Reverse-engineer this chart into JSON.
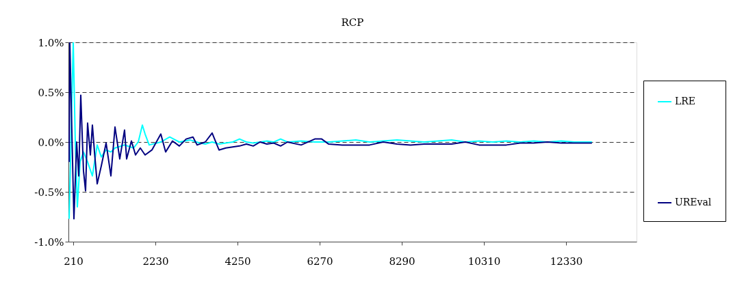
{
  "chart_data": {
    "type": "line",
    "title": "RCP",
    "xlim": [
      92,
      14064
    ],
    "xticks": [
      210,
      2230,
      4250,
      6270,
      8290,
      10310,
      12330
    ],
    "ylim": [
      -1.0,
      1.0
    ],
    "yticks": [
      {
        "value": -1.0,
        "label": "-1.0%"
      },
      {
        "value": -0.5,
        "label": "-0.5%"
      },
      {
        "value": 0.0,
        "label": "0.0%"
      },
      {
        "value": 0.5,
        "label": "0.5%"
      },
      {
        "value": 1.0,
        "label": "1.0%"
      }
    ],
    "grid": "y",
    "legend": "right",
    "line_style": "solid",
    "marker": "none",
    "series": [
      {
        "name": "LRE",
        "color": "#00ffff",
        "x": [
          109,
          210,
          260,
          311,
          378,
          462,
          563,
          681,
          799,
          900,
          1018,
          1136,
          1237,
          1472,
          1691,
          1809,
          1910,
          1977,
          2078,
          2364,
          2583,
          2819,
          3088,
          3324,
          3458,
          3626,
          3795,
          3963,
          4132,
          4300,
          4468,
          4637,
          4805,
          4973,
          5141,
          5310,
          5478,
          5815,
          6151,
          6488,
          6824,
          7161,
          7498,
          7834,
          8171,
          8507,
          8844,
          9180,
          9517,
          9854,
          10190,
          10527,
          10863,
          11200,
          11537,
          11873,
          12210,
          12546,
          12967
        ],
        "values": [
          -0.77,
          1.0,
          0.0,
          -0.65,
          -0.2,
          -0.1,
          -0.2,
          -0.34,
          -0.03,
          -0.15,
          -0.08,
          -0.1,
          -0.06,
          -0.03,
          -0.06,
          0.0,
          0.17,
          0.08,
          -0.03,
          0.0,
          0.05,
          0.0,
          0.02,
          -0.01,
          -0.02,
          0.0,
          -0.02,
          -0.01,
          0.0,
          0.03,
          0.0,
          -0.01,
          0.0,
          0.01,
          0.0,
          0.03,
          0.0,
          0.01,
          0.0,
          0.0,
          0.01,
          0.02,
          0.0,
          0.01,
          0.02,
          0.01,
          0.0,
          0.01,
          0.02,
          0.0,
          0.01,
          0.0,
          0.01,
          0.0,
          0.01,
          0.0,
          0.01,
          0.0,
          0.0
        ]
      },
      {
        "name": "UREval",
        "color": "#000080",
        "x": [
          109,
          126,
          210,
          227,
          294,
          345,
          395,
          462,
          513,
          563,
          631,
          681,
          732,
          799,
          900,
          1018,
          1136,
          1237,
          1354,
          1472,
          1523,
          1641,
          1742,
          1859,
          1977,
          2145,
          2364,
          2482,
          2650,
          2819,
          2987,
          3155,
          3256,
          3458,
          3626,
          3795,
          3963,
          4132,
          4300,
          4468,
          4637,
          4805,
          4973,
          5141,
          5310,
          5478,
          5815,
          6151,
          6320,
          6488,
          6824,
          7161,
          7498,
          7834,
          8171,
          8507,
          8844,
          9180,
          9517,
          9854,
          10190,
          10527,
          10863,
          11200,
          11537,
          11873,
          12210,
          12546,
          12967
        ],
        "values": [
          -0.2,
          1.0,
          -0.49,
          -0.77,
          0.0,
          -0.34,
          0.47,
          -0.29,
          -0.49,
          0.19,
          -0.13,
          0.17,
          -0.1,
          -0.42,
          -0.24,
          -0.01,
          -0.34,
          0.15,
          -0.17,
          0.12,
          -0.17,
          0.01,
          -0.13,
          -0.06,
          -0.13,
          -0.08,
          0.08,
          -0.1,
          0.01,
          -0.04,
          0.03,
          0.05,
          -0.03,
          0.0,
          0.09,
          -0.08,
          -0.06,
          -0.05,
          -0.04,
          -0.02,
          -0.04,
          0.0,
          -0.02,
          -0.01,
          -0.04,
          0.0,
          -0.03,
          0.03,
          0.03,
          -0.02,
          -0.03,
          -0.03,
          -0.03,
          0.0,
          -0.02,
          -0.03,
          -0.02,
          -0.02,
          -0.02,
          0.0,
          -0.03,
          -0.03,
          -0.03,
          -0.01,
          -0.01,
          0.0,
          -0.01,
          -0.01,
          -0.01
        ]
      }
    ]
  }
}
